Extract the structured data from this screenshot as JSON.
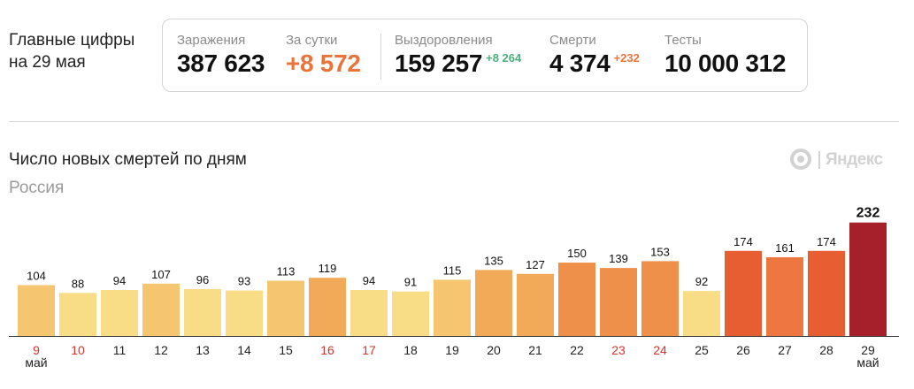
{
  "header": {
    "line1": "Главные цифры",
    "line2": "на 29 мая"
  },
  "stats": {
    "infections": {
      "label": "Заражения",
      "value": "387 623"
    },
    "daily": {
      "label": "За сутки",
      "value": "+8 572",
      "color": "#e8743b"
    },
    "recovered": {
      "label": "Выздоровления",
      "value": "159 257",
      "delta": "+8 264",
      "delta_color": "#4caf7d"
    },
    "deaths": {
      "label": "Смерти",
      "value": "4 374",
      "delta": "+232",
      "delta_color": "#e8743b"
    },
    "tests": {
      "label": "Тесты",
      "value": "10 000 312"
    }
  },
  "brand": {
    "text": "Яндекс"
  },
  "chart_data": {
    "type": "bar",
    "title": "Число новых смертей по дням",
    "subtitle": "Россия",
    "categories": [
      "9",
      "10",
      "11",
      "12",
      "13",
      "14",
      "15",
      "16",
      "17",
      "18",
      "19",
      "20",
      "21",
      "22",
      "23",
      "24",
      "25",
      "26",
      "27",
      "28",
      "29"
    ],
    "values": [
      104,
      88,
      94,
      107,
      96,
      93,
      113,
      119,
      94,
      91,
      115,
      135,
      127,
      150,
      139,
      153,
      92,
      174,
      161,
      174,
      232
    ],
    "month_labels": [
      {
        "index": 0,
        "text": "май"
      },
      {
        "index": 20,
        "text": "май"
      }
    ],
    "weekend_indices": [
      0,
      1,
      7,
      8,
      14,
      15
    ],
    "highlight_last": true,
    "grid": false,
    "colors": {
      "c1": "#f8dc86",
      "c2": "#f5c66f",
      "c3": "#f3aa58",
      "c4": "#ee9049",
      "c5": "#e85e33",
      "c6": "#ee7741",
      "c_last": "#a5202b",
      "weekend_label": "#d6322c",
      "axis": "#333333"
    },
    "bar_colors": [
      "c2",
      "c1",
      "c1",
      "c2",
      "c1",
      "c1",
      "c2",
      "c3",
      "c1",
      "c1",
      "c2",
      "c3",
      "c3",
      "c4",
      "c4",
      "c4",
      "c1",
      "c5",
      "c6",
      "c5",
      "c_last"
    ]
  }
}
